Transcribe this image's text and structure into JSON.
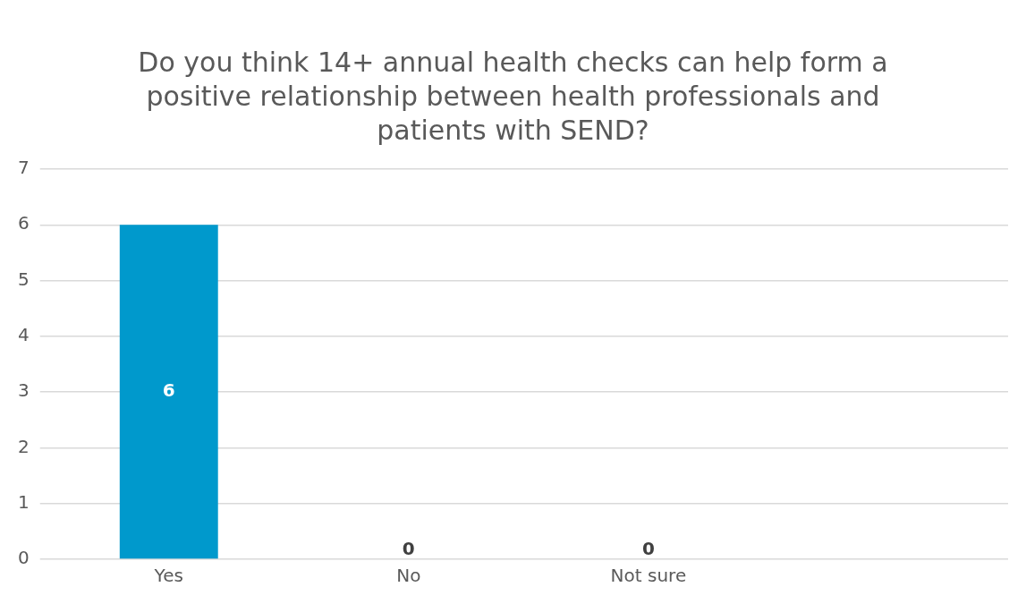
{
  "chart_data": {
    "type": "bar",
    "title": "Do you think 14+ annual health checks can help form a positive relationship between health professionals and patients with SEND?",
    "categories": [
      "Yes",
      "No",
      "Not sure",
      null
    ],
    "values": [
      6,
      0,
      0,
      null
    ],
    "color": "#0099cc",
    "ylim": [
      0,
      7
    ],
    "yticks": [
      0,
      1,
      2,
      3,
      4,
      5,
      6,
      7
    ],
    "grid": "y",
    "legend": false,
    "data_labels": true
  }
}
